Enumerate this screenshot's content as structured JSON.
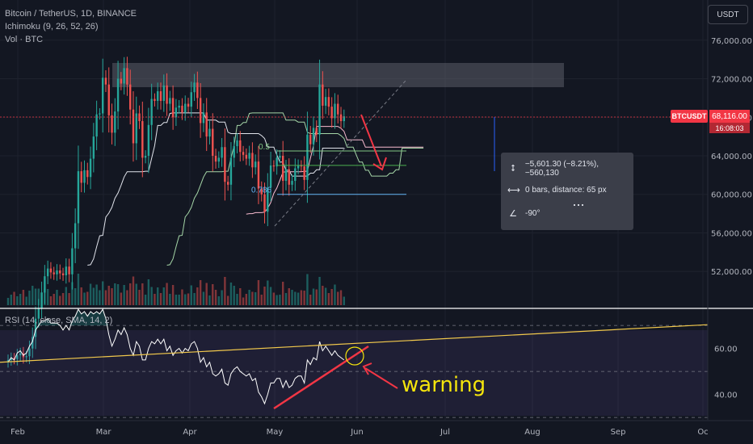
{
  "header": {
    "symbol_line": "Bitcoin / TetherUS, 1D, BINANCE",
    "indicator_line": "Ichimoku (9, 26, 52, 26)",
    "volume_line": "Vol · BTC"
  },
  "currency_button": "USDT",
  "price_axis": {
    "labels": [
      "76,000.00",
      "72,000.00",
      "68,000.00",
      "64,000.00",
      "60,000.00",
      "56,000.00",
      "52,000.00"
    ],
    "ticks": [
      76000,
      72000,
      68000,
      64000,
      60000,
      56000,
      52000
    ]
  },
  "current_price": {
    "symbol_tag": "BTCUSDT",
    "price": "68,116.00",
    "countdown": "16:08:03",
    "value": 68116
  },
  "fib_labels": [
    "0.5",
    "0.786"
  ],
  "measure_box": {
    "line1": "−5,601.30 (−8.21%), −560,130",
    "line2": "0 bars, distance: 65 px",
    "line3": "-90°"
  },
  "rsi": {
    "title": "RSI (14, close, SMA, 14, 2)",
    "labels": [
      "60.00",
      "40.00"
    ],
    "ticks": [
      60,
      40
    ],
    "annotation": "warning"
  },
  "time_axis": [
    "Feb",
    "Mar",
    "Apr",
    "May",
    "Jun",
    "Jul",
    "Aug",
    "Sep",
    "Oc"
  ],
  "colors": {
    "background": "#131722",
    "up_candle": "#26a69a",
    "down_candle": "#ef5350",
    "annotation_red": "#f23645",
    "annotation_yellow": "#f5e50c",
    "rsi_line": "#ffffff",
    "trendline_yellow": "#f2c94c"
  },
  "chart_data": {
    "type": "candlestick",
    "title": "Bitcoin / TetherUS, 1D, BINANCE",
    "ylim": [
      48500,
      79500
    ],
    "resistance_zone": [
      71500,
      74000
    ],
    "x_months": [
      "Feb",
      "Mar",
      "Apr",
      "May",
      "Jun",
      "Jul",
      "Aug",
      "Sep"
    ],
    "close_series": [
      42800,
      43000,
      42900,
      43300,
      43500,
      43100,
      43200,
      44000,
      45200,
      47100,
      48200,
      49800,
      51500,
      52300,
      51900,
      51700,
      52100,
      51800,
      51600,
      52500,
      51700,
      54400,
      57000,
      62400,
      61200,
      62500,
      61800,
      63700,
      66000,
      68300,
      68400,
      72100,
      71400,
      68200,
      66400,
      68600,
      72000,
      71500,
      73100,
      71400,
      68800,
      65300,
      68400,
      67600,
      63800,
      64000,
      67200,
      69900,
      69700,
      70700,
      69700,
      71300,
      69400,
      70000,
      68000,
      69000,
      69200,
      68500,
      69400,
      69100,
      70600,
      71600,
      70000,
      67400,
      68500,
      66000,
      66800,
      64000,
      63400,
      63800,
      64900,
      61300,
      61000,
      63800,
      65000,
      65600,
      64400,
      64100,
      63700,
      64300,
      62800,
      63400,
      60600,
      60000,
      58200,
      60700,
      63000,
      62900,
      63800,
      64000,
      61400,
      62600,
      61000,
      61400,
      62700,
      63000,
      62900,
      61500,
      66200,
      65200,
      66900,
      66200,
      71400,
      69200,
      70100,
      69100,
      67900,
      69400,
      68300,
      67600,
      68100
    ],
    "fib_levels": {
      "0.5": 64500,
      "0.618": 63000,
      "0.786": 60000
    },
    "rsi_ylim": [
      29,
      76
    ],
    "rsi_values": [
      54,
      56,
      55,
      58,
      59,
      57,
      58,
      61,
      63,
      68,
      70,
      72,
      72,
      73,
      71,
      71,
      71,
      70,
      68,
      70,
      68,
      72,
      74,
      77,
      75,
      76,
      74,
      76,
      75,
      76,
      75,
      77,
      73,
      66,
      61,
      64,
      68,
      66,
      69,
      66,
      60,
      57,
      63,
      61,
      55,
      55,
      60,
      63,
      62,
      64,
      62,
      64,
      59,
      61,
      57,
      59,
      60,
      58,
      60,
      59,
      62,
      63,
      60,
      54,
      56,
      52,
      54,
      49,
      48,
      49,
      51,
      45,
      44,
      49,
      51,
      52,
      50,
      49,
      48,
      49,
      46,
      47,
      41,
      39,
      36,
      40,
      45,
      45,
      47,
      47,
      43,
      46,
      43,
      44,
      47,
      48,
      48,
      45,
      55,
      53,
      56,
      55,
      63,
      59,
      61,
      59,
      57,
      59,
      57,
      56,
      55
    ],
    "rsi_trendline": [
      [
        0,
        54
      ],
      [
        111,
        62
      ]
    ],
    "rsi_bands": [
      70,
      50,
      30
    ]
  }
}
